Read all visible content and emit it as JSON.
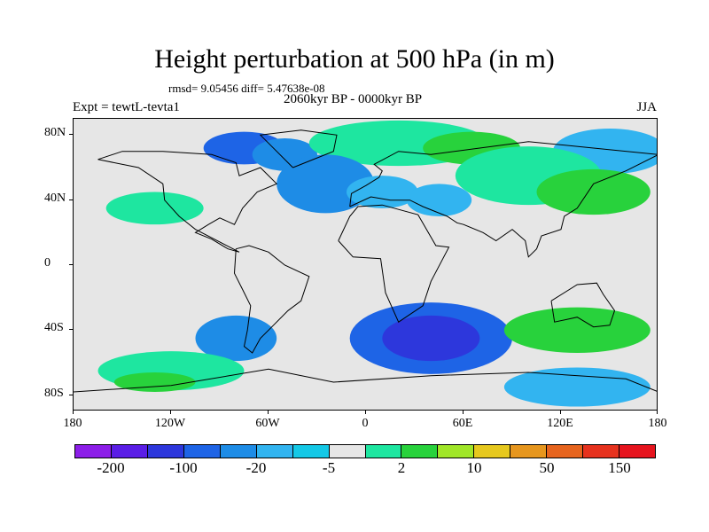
{
  "title": "Height perturbation at 500 hPa (in m)",
  "stats": "rmsd= 9.05456 diff= 5.47638e-08",
  "period": "2060kyr BP - 0000kyr BP",
  "experiment": "Expt = tewtL-tevta1",
  "season": "JJA",
  "map": {
    "projection": "cylindrical-equidistant",
    "lon_range": [
      -180,
      180
    ],
    "lat_range": [
      -90,
      90
    ],
    "lat_labels": [
      "80N",
      "40N",
      "0",
      "40S",
      "80S"
    ],
    "lat_values": [
      80,
      40,
      0,
      -40,
      -80
    ],
    "lon_labels": [
      "180",
      "120W",
      "60W",
      "0",
      "60E",
      "120E",
      "180"
    ],
    "lon_values": [
      -180,
      -120,
      -60,
      0,
      60,
      120,
      180
    ]
  },
  "field": {
    "anomaly_regions": [
      {
        "lon": -120,
        "lat": 72,
        "rx": 45,
        "ry": 16,
        "level": 7
      },
      {
        "lon": -75,
        "lat": 72,
        "rx": 25,
        "ry": 10,
        "level": 3
      },
      {
        "lon": -50,
        "lat": 68,
        "rx": 20,
        "ry": 10,
        "level": 4
      },
      {
        "lon": 20,
        "lat": 75,
        "rx": 55,
        "ry": 14,
        "level": 8
      },
      {
        "lon": 65,
        "lat": 72,
        "rx": 30,
        "ry": 10,
        "level": 9
      },
      {
        "lon": 150,
        "lat": 70,
        "rx": 35,
        "ry": 14,
        "level": 5
      },
      {
        "lon": 100,
        "lat": 55,
        "rx": 45,
        "ry": 18,
        "level": 8
      },
      {
        "lon": 140,
        "lat": 45,
        "rx": 35,
        "ry": 14,
        "level": 9
      },
      {
        "lon": -25,
        "lat": 50,
        "rx": 30,
        "ry": 18,
        "level": 4
      },
      {
        "lon": 10,
        "lat": 45,
        "rx": 22,
        "ry": 10,
        "level": 5
      },
      {
        "lon": 45,
        "lat": 40,
        "rx": 20,
        "ry": 10,
        "level": 5
      },
      {
        "lon": -100,
        "lat": 40,
        "rx": 40,
        "ry": 12,
        "level": 7
      },
      {
        "lon": -130,
        "lat": 35,
        "rx": 30,
        "ry": 10,
        "level": 8
      },
      {
        "lon": -150,
        "lat": -30,
        "rx": 25,
        "ry": 12,
        "level": 7
      },
      {
        "lon": -80,
        "lat": -45,
        "rx": 25,
        "ry": 14,
        "level": 4
      },
      {
        "lon": 40,
        "lat": -45,
        "rx": 50,
        "ry": 22,
        "level": 3
      },
      {
        "lon": 40,
        "lat": -45,
        "rx": 30,
        "ry": 14,
        "level": 2
      },
      {
        "lon": 130,
        "lat": -40,
        "rx": 45,
        "ry": 14,
        "level": 9
      },
      {
        "lon": 130,
        "lat": -75,
        "rx": 45,
        "ry": 12,
        "level": 5
      },
      {
        "lon": -120,
        "lat": -65,
        "rx": 45,
        "ry": 12,
        "level": 8
      },
      {
        "lon": -130,
        "lat": -72,
        "rx": 25,
        "ry": 6,
        "level": 9
      }
    ]
  },
  "colorbar": {
    "colors": [
      "#8c1ee8",
      "#5a1ee6",
      "#2d37dc",
      "#1e64e6",
      "#1e8ce6",
      "#32b4f0",
      "#14c8e6",
      "#e6e6e6",
      "#1ee6a0",
      "#28d23c",
      "#a0e628",
      "#e6c81e",
      "#e6961e",
      "#e6641e",
      "#e6321e",
      "#e6141e"
    ],
    "labels": [
      "-200",
      "-100",
      "-20",
      "-5",
      "2",
      "10",
      "50",
      "150"
    ]
  }
}
